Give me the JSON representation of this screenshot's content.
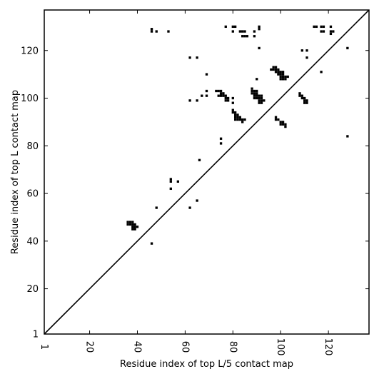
{
  "chart_data": {
    "type": "scatter",
    "title": "",
    "xlabel": "Residue index of top L/5 contact map",
    "ylabel": "Residue index of top L contact map",
    "xlim": [
      1,
      137
    ],
    "ylim": [
      1,
      137
    ],
    "x_ticks": [
      "1",
      "20",
      "40",
      "60",
      "80",
      "100",
      "120"
    ],
    "x_tick_values": [
      1,
      20,
      40,
      60,
      80,
      100,
      120
    ],
    "y_ticks": [
      "1",
      "20",
      "40",
      "60",
      "80",
      "100",
      "120"
    ],
    "y_tick_values": [
      1,
      20,
      40,
      60,
      80,
      100,
      120
    ],
    "diagonal": true,
    "grid": false,
    "marker_color": "#000000",
    "series": [
      {
        "points": [
          [
            36,
            47
          ],
          [
            36,
            48
          ],
          [
            37,
            47
          ],
          [
            37,
            48
          ],
          [
            38,
            47
          ],
          [
            38,
            48
          ],
          [
            38,
            45
          ],
          [
            38,
            46
          ],
          [
            39,
            45
          ],
          [
            39,
            46
          ],
          [
            39,
            47
          ],
          [
            40,
            46
          ],
          [
            46,
            39
          ],
          [
            48,
            54
          ],
          [
            54,
            62
          ],
          [
            54,
            65
          ],
          [
            54,
            66
          ],
          [
            57,
            65
          ],
          [
            62,
            54
          ],
          [
            65,
            57
          ],
          [
            66,
            74
          ],
          [
            75,
            81
          ],
          [
            75,
            83
          ],
          [
            85,
            91
          ],
          [
            84,
            91
          ],
          [
            83,
            91
          ],
          [
            82,
            91
          ],
          [
            81,
            91
          ],
          [
            84,
            90
          ],
          [
            83,
            92
          ],
          [
            82,
            92
          ],
          [
            81,
            92
          ],
          [
            82,
            93
          ],
          [
            81,
            93
          ],
          [
            80,
            94
          ],
          [
            81,
            94
          ],
          [
            80,
            95
          ],
          [
            98,
            91
          ],
          [
            98,
            92
          ],
          [
            99,
            91
          ],
          [
            100,
            90
          ],
          [
            100,
            89
          ],
          [
            101,
            89
          ],
          [
            101,
            90
          ],
          [
            102,
            88
          ],
          [
            102,
            89
          ],
          [
            109,
            100
          ],
          [
            109,
            101
          ],
          [
            108,
            101
          ],
          [
            108,
            102
          ],
          [
            110,
            100
          ],
          [
            110,
            99
          ],
          [
            111,
            99
          ],
          [
            111,
            98
          ],
          [
            110,
            98
          ],
          [
            128,
            84
          ],
          [
            128,
            121
          ],
          [
            46,
            128
          ],
          [
            46,
            129
          ],
          [
            48,
            128
          ],
          [
            53,
            128
          ],
          [
            62,
            117
          ],
          [
            65,
            117
          ],
          [
            69,
            110
          ],
          [
            62,
            99
          ],
          [
            65,
            99
          ],
          [
            67,
            101
          ],
          [
            69,
            101
          ],
          [
            69,
            103
          ],
          [
            73,
            103
          ],
          [
            74,
            103
          ],
          [
            75,
            103
          ],
          [
            74,
            101
          ],
          [
            75,
            101
          ],
          [
            76,
            101
          ],
          [
            75,
            102
          ],
          [
            76,
            102
          ],
          [
            77,
            100
          ],
          [
            77,
            101
          ],
          [
            78,
            100
          ],
          [
            77,
            99
          ],
          [
            78,
            99
          ],
          [
            80,
            100
          ],
          [
            80,
            98
          ],
          [
            77,
            130
          ],
          [
            80,
            130
          ],
          [
            81,
            130
          ],
          [
            80,
            128
          ],
          [
            83,
            128
          ],
          [
            84,
            128
          ],
          [
            85,
            128
          ],
          [
            84,
            126
          ],
          [
            85,
            126
          ],
          [
            86,
            126
          ],
          [
            89,
            128
          ],
          [
            89,
            126
          ],
          [
            91,
            129
          ],
          [
            91,
            130
          ],
          [
            91,
            121
          ],
          [
            88,
            104
          ],
          [
            88,
            103
          ],
          [
            89,
            103
          ],
          [
            90,
            103
          ],
          [
            88,
            102
          ],
          [
            89,
            102
          ],
          [
            90,
            102
          ],
          [
            89,
            101
          ],
          [
            90,
            101
          ],
          [
            91,
            101
          ],
          [
            92,
            101
          ],
          [
            89,
            100
          ],
          [
            90,
            100
          ],
          [
            91,
            100
          ],
          [
            92,
            100
          ],
          [
            91,
            99
          ],
          [
            92,
            99
          ],
          [
            93,
            99
          ],
          [
            91,
            98
          ],
          [
            92,
            98
          ],
          [
            90,
            108
          ],
          [
            97,
            112
          ],
          [
            98,
            112
          ],
          [
            98,
            113
          ],
          [
            97,
            113
          ],
          [
            99,
            112
          ],
          [
            98,
            111
          ],
          [
            99,
            111
          ],
          [
            100,
            111
          ],
          [
            101,
            111
          ],
          [
            100,
            110
          ],
          [
            101,
            110
          ],
          [
            99,
            110
          ],
          [
            101,
            109
          ],
          [
            102,
            109
          ],
          [
            103,
            109
          ],
          [
            100,
            109
          ],
          [
            101,
            108
          ],
          [
            102,
            108
          ],
          [
            100,
            108
          ],
          [
            96,
            112
          ],
          [
            109,
            120
          ],
          [
            111,
            120
          ],
          [
            111,
            117
          ],
          [
            117,
            111
          ],
          [
            114,
            130
          ],
          [
            115,
            130
          ],
          [
            117,
            130
          ],
          [
            118,
            130
          ],
          [
            117,
            128
          ],
          [
            118,
            128
          ],
          [
            121,
            130
          ],
          [
            121,
            128
          ],
          [
            122,
            128
          ],
          [
            121,
            127
          ]
        ]
      }
    ]
  }
}
